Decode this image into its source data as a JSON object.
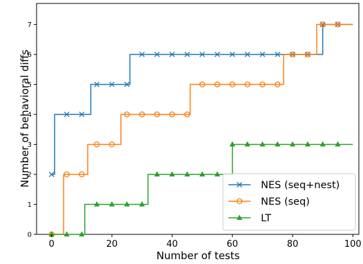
{
  "chart_data": {
    "type": "line",
    "step": "post",
    "xlabel": "Number of tests",
    "ylabel": "Number of behavioral diffs",
    "xlim": [
      -5,
      102
    ],
    "ylim": [
      0,
      7.7
    ],
    "xticks": [
      0,
      20,
      40,
      60,
      80,
      100
    ],
    "yticks": [
      0,
      1,
      2,
      3,
      4,
      5,
      6,
      7
    ],
    "grid": false,
    "legend_position": "bottom-right",
    "series": [
      {
        "name": "NES (seq+nest)",
        "color": "#1f77b4",
        "marker": "x",
        "steps": [
          [
            0,
            2
          ],
          [
            1,
            4
          ],
          [
            13,
            5
          ],
          [
            26,
            6
          ],
          [
            90,
            7
          ],
          [
            100,
            7
          ]
        ],
        "markers_x": [
          0,
          5,
          10,
          15,
          20,
          25,
          30,
          35,
          40,
          45,
          50,
          55,
          60,
          65,
          70,
          75,
          80,
          85,
          90,
          95
        ],
        "markers_y": [
          2,
          4,
          4,
          5,
          5,
          5,
          6,
          6,
          6,
          6,
          6,
          6,
          6,
          6,
          6,
          6,
          6,
          6,
          7,
          7
        ]
      },
      {
        "name": "NES (seq)",
        "color": "#ff7f0e",
        "marker": "o",
        "steps": [
          [
            0,
            0
          ],
          [
            4,
            2
          ],
          [
            12,
            3
          ],
          [
            23,
            4
          ],
          [
            46,
            5
          ],
          [
            77,
            6
          ],
          [
            88,
            7
          ],
          [
            100,
            7
          ]
        ],
        "markers_x": [
          0,
          5,
          10,
          15,
          20,
          25,
          30,
          35,
          40,
          45,
          50,
          55,
          60,
          65,
          70,
          75,
          80,
          85,
          90,
          95
        ],
        "markers_y": [
          0,
          2,
          2,
          3,
          3,
          4,
          4,
          4,
          4,
          4,
          5,
          5,
          5,
          5,
          5,
          5,
          6,
          6,
          7,
          7
        ]
      },
      {
        "name": "LT",
        "color": "#2ca02c",
        "marker": "^",
        "steps": [
          [
            0,
            0
          ],
          [
            11,
            1
          ],
          [
            32,
            2
          ],
          [
            60,
            3
          ],
          [
            100,
            3
          ]
        ],
        "markers_x": [
          0,
          5,
          10,
          15,
          20,
          25,
          30,
          35,
          40,
          45,
          50,
          55,
          60,
          65,
          70,
          75,
          80,
          85,
          90,
          95
        ],
        "markers_y": [
          0,
          0,
          0,
          1,
          1,
          1,
          1,
          2,
          2,
          2,
          2,
          2,
          3,
          3,
          3,
          3,
          3,
          3,
          3,
          3
        ]
      }
    ]
  }
}
